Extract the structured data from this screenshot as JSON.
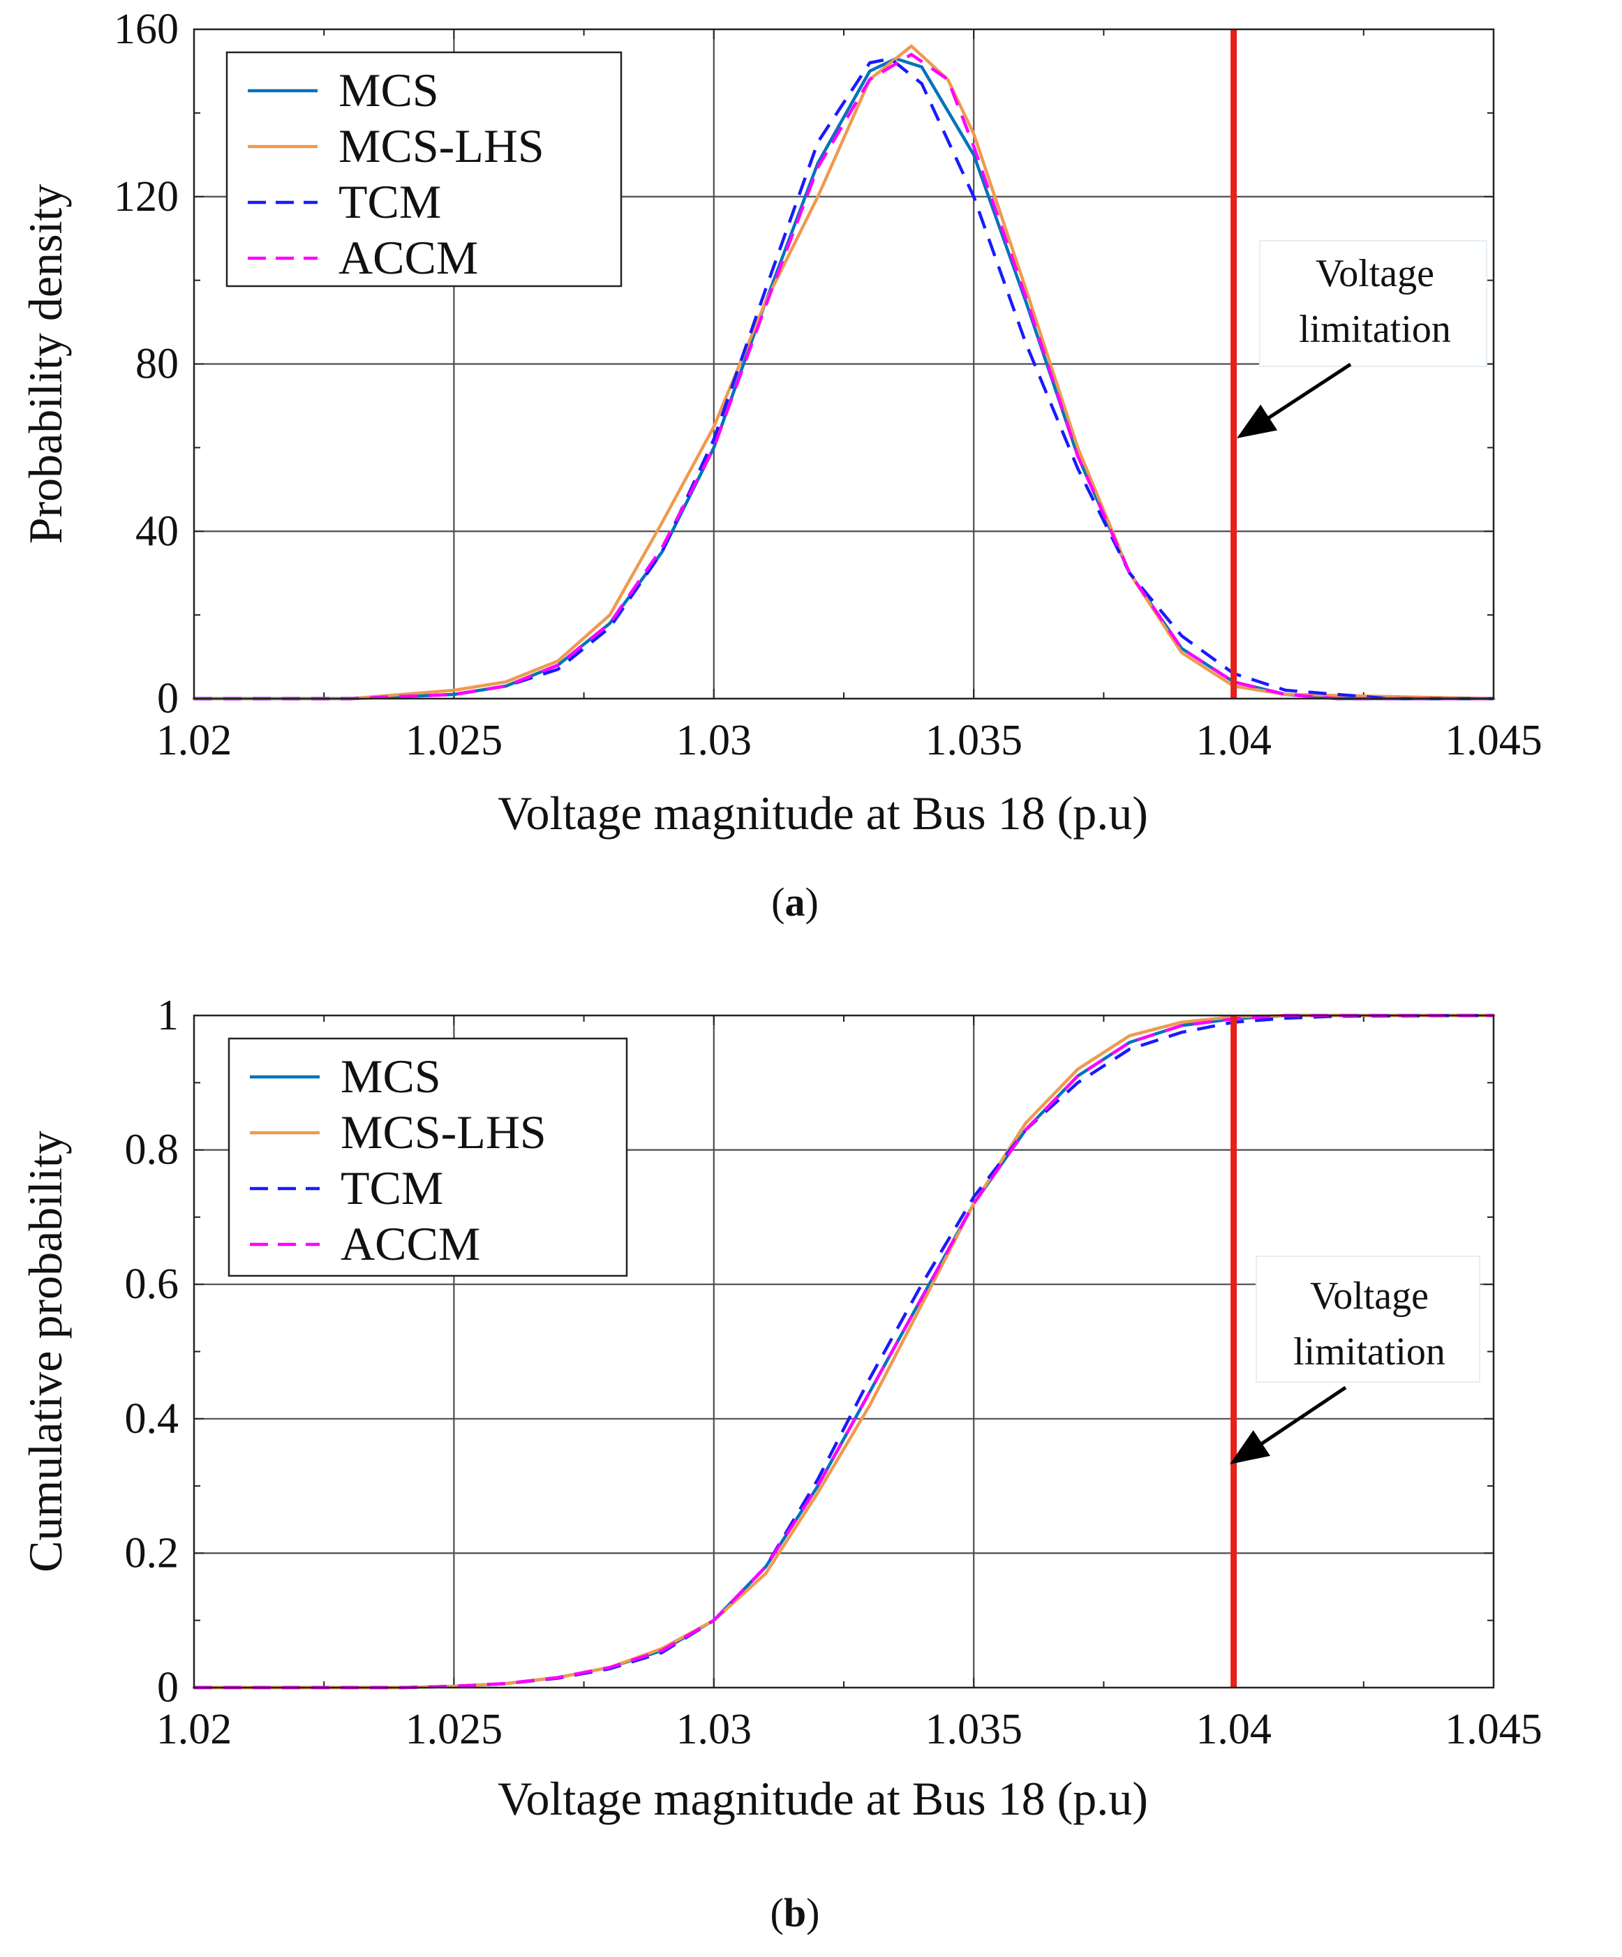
{
  "colors": {
    "mcs": "#0072BD",
    "mcs_lhs": "#EE9A50",
    "tcm": "#1A1AFF",
    "accm": "#FF00FF",
    "limit": "#E8201B",
    "grid": "#4d4d4d"
  },
  "chart_data": [
    {
      "id": "a",
      "type": "line",
      "caption_letter": "a",
      "xlabel": "Voltage magnitude at Bus 18 (p.u)",
      "ylabel": "Probability density",
      "xlim": [
        1.02,
        1.045
      ],
      "ylim": [
        0,
        160
      ],
      "xticks": [
        1.02,
        1.025,
        1.03,
        1.035,
        1.04,
        1.045
      ],
      "xtick_labels": [
        "1.02",
        "1.025",
        "1.03",
        "1.035",
        "1.04",
        "1.045"
      ],
      "yticks": [
        0,
        40,
        80,
        120,
        160
      ],
      "ytick_labels": [
        "0",
        "40",
        "80",
        "120",
        "160"
      ],
      "grid": true,
      "legend_position": "top-left",
      "legend": [
        "MCS",
        "MCS-LHS",
        "TCM",
        "ACCM"
      ],
      "series": [
        {
          "name": "MCS",
          "style": "solid",
          "color": "#0072BD",
          "x": [
            1.02,
            1.023,
            1.025,
            1.026,
            1.027,
            1.028,
            1.029,
            1.03,
            1.031,
            1.032,
            1.033,
            1.0335,
            1.034,
            1.035,
            1.036,
            1.037,
            1.038,
            1.039,
            1.04,
            1.041,
            1.042,
            1.045
          ],
          "y": [
            0,
            0,
            1,
            3,
            8,
            18,
            35,
            60,
            95,
            128,
            150,
            153,
            151,
            130,
            95,
            58,
            30,
            12,
            4,
            1,
            0,
            0
          ]
        },
        {
          "name": "MCS-LHS",
          "style": "solid",
          "color": "#EE9A50",
          "x": [
            1.02,
            1.023,
            1.025,
            1.026,
            1.027,
            1.028,
            1.029,
            1.03,
            1.031,
            1.032,
            1.033,
            1.0338,
            1.0345,
            1.035,
            1.036,
            1.037,
            1.038,
            1.039,
            1.04,
            1.041,
            1.045
          ],
          "y": [
            0,
            0,
            2,
            4,
            9,
            20,
            42,
            65,
            95,
            120,
            148,
            156,
            148,
            135,
            98,
            60,
            30,
            11,
            3,
            1,
            0
          ]
        },
        {
          "name": "TCM",
          "style": "dashed",
          "color": "#1A1AFF",
          "x": [
            1.02,
            1.023,
            1.025,
            1.026,
            1.027,
            1.028,
            1.029,
            1.03,
            1.031,
            1.032,
            1.033,
            1.0334,
            1.034,
            1.035,
            1.036,
            1.037,
            1.038,
            1.039,
            1.04,
            1.041,
            1.042,
            1.043,
            1.045
          ],
          "y": [
            0,
            0,
            1,
            3,
            7,
            17,
            35,
            62,
            98,
            133,
            152,
            153,
            147,
            120,
            85,
            55,
            30,
            15,
            6,
            2,
            1,
            0,
            0
          ]
        },
        {
          "name": "ACCM",
          "style": "dashed",
          "color": "#FF00FF",
          "x": [
            1.02,
            1.023,
            1.025,
            1.026,
            1.027,
            1.028,
            1.029,
            1.03,
            1.031,
            1.032,
            1.033,
            1.0338,
            1.0345,
            1.035,
            1.036,
            1.037,
            1.038,
            1.039,
            1.04,
            1.041,
            1.042,
            1.045
          ],
          "y": [
            0,
            0,
            1,
            3,
            8,
            18,
            36,
            60,
            94,
            127,
            148,
            154,
            148,
            132,
            96,
            58,
            30,
            12,
            4,
            1,
            0,
            0
          ]
        }
      ],
      "limit": {
        "x": 1.04
      },
      "annotation": {
        "line1": "Voltage",
        "line2": "limitation"
      }
    },
    {
      "id": "b",
      "type": "line",
      "caption_letter": "b",
      "xlabel": "Voltage magnitude at Bus 18 (p.u)",
      "ylabel": "Cumulative probability",
      "xlim": [
        1.02,
        1.045
      ],
      "ylim": [
        0,
        1
      ],
      "xticks": [
        1.02,
        1.025,
        1.03,
        1.035,
        1.04,
        1.045
      ],
      "xtick_labels": [
        "1.02",
        "1.025",
        "1.03",
        "1.035",
        "1.04",
        "1.045"
      ],
      "yticks": [
        0,
        0.2,
        0.4,
        0.6,
        0.8,
        1
      ],
      "ytick_labels": [
        "0",
        "0.2",
        "0.4",
        "0.6",
        "0.8",
        "1"
      ],
      "grid": true,
      "legend_position": "top-left",
      "legend": [
        "MCS",
        "MCS-LHS",
        "TCM",
        "ACCM"
      ],
      "series": [
        {
          "name": "MCS",
          "style": "solid",
          "color": "#0072BD",
          "x": [
            1.02,
            1.024,
            1.025,
            1.026,
            1.027,
            1.028,
            1.029,
            1.03,
            1.031,
            1.032,
            1.033,
            1.034,
            1.035,
            1.036,
            1.037,
            1.038,
            1.039,
            1.04,
            1.041,
            1.045
          ],
          "y": [
            0,
            0,
            0.002,
            0.006,
            0.015,
            0.03,
            0.055,
            0.1,
            0.18,
            0.3,
            0.44,
            0.58,
            0.72,
            0.83,
            0.91,
            0.96,
            0.985,
            0.995,
            1,
            1
          ]
        },
        {
          "name": "MCS-LHS",
          "style": "solid",
          "color": "#EE9A50",
          "x": [
            1.02,
            1.024,
            1.025,
            1.026,
            1.027,
            1.028,
            1.029,
            1.03,
            1.031,
            1.032,
            1.033,
            1.034,
            1.035,
            1.036,
            1.037,
            1.038,
            1.039,
            1.04,
            1.041,
            1.045
          ],
          "y": [
            0,
            0,
            0.002,
            0.006,
            0.015,
            0.03,
            0.058,
            0.1,
            0.17,
            0.29,
            0.42,
            0.57,
            0.72,
            0.84,
            0.92,
            0.97,
            0.99,
            0.998,
            1,
            1
          ]
        },
        {
          "name": "TCM",
          "style": "dashed",
          "color": "#1A1AFF",
          "x": [
            1.02,
            1.024,
            1.025,
            1.026,
            1.027,
            1.028,
            1.029,
            1.03,
            1.031,
            1.032,
            1.033,
            1.034,
            1.035,
            1.036,
            1.037,
            1.038,
            1.039,
            1.04,
            1.041,
            1.042,
            1.045
          ],
          "y": [
            0,
            0,
            0.002,
            0.006,
            0.014,
            0.028,
            0.052,
            0.1,
            0.18,
            0.31,
            0.46,
            0.6,
            0.73,
            0.83,
            0.9,
            0.95,
            0.975,
            0.99,
            0.996,
            0.999,
            1
          ]
        },
        {
          "name": "ACCM",
          "style": "dashed",
          "color": "#FF00FF",
          "x": [
            1.02,
            1.024,
            1.025,
            1.026,
            1.027,
            1.028,
            1.029,
            1.03,
            1.031,
            1.032,
            1.033,
            1.034,
            1.035,
            1.036,
            1.037,
            1.038,
            1.039,
            1.04,
            1.041,
            1.045
          ],
          "y": [
            0,
            0,
            0.002,
            0.006,
            0.015,
            0.03,
            0.055,
            0.1,
            0.18,
            0.3,
            0.44,
            0.58,
            0.72,
            0.83,
            0.91,
            0.96,
            0.985,
            0.995,
            1,
            1
          ]
        }
      ],
      "limit": {
        "x": 1.04
      },
      "annotation": {
        "line1": "Voltage",
        "line2": "limitation"
      }
    }
  ]
}
